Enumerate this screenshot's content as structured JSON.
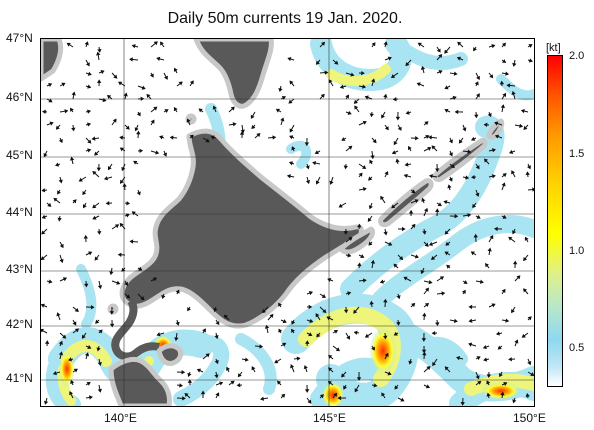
{
  "title": "Daily 50m currents 19 Jan. 2020.",
  "latitude_labels": [
    "47°N",
    "46°N",
    "45°N",
    "44°N",
    "43°N",
    "42°N",
    "41°N"
  ],
  "longitude_labels": [
    "140°E",
    "145°E",
    "150°E"
  ],
  "colorbar": {
    "unit": "[kt]",
    "ticks": [
      "2.0",
      "1.5",
      "1.0",
      "0.5"
    ],
    "range": [
      0,
      2.0
    ]
  },
  "colors": {
    "land": "#595959",
    "land_edge": "#c8c8c8",
    "ocean": "#ffffff",
    "weak_current": "#a8e4f2",
    "mid_current": "#ffff33",
    "strong_current": "#ff5a00",
    "arrow": "#111111"
  },
  "map": {
    "lon_range": [
      138,
      150
    ],
    "lat_range": [
      40.6,
      47
    ],
    "features": [
      "Hokkaido",
      "Sakhalin",
      "Kuril Islands",
      "Honshu (north)"
    ]
  }
}
